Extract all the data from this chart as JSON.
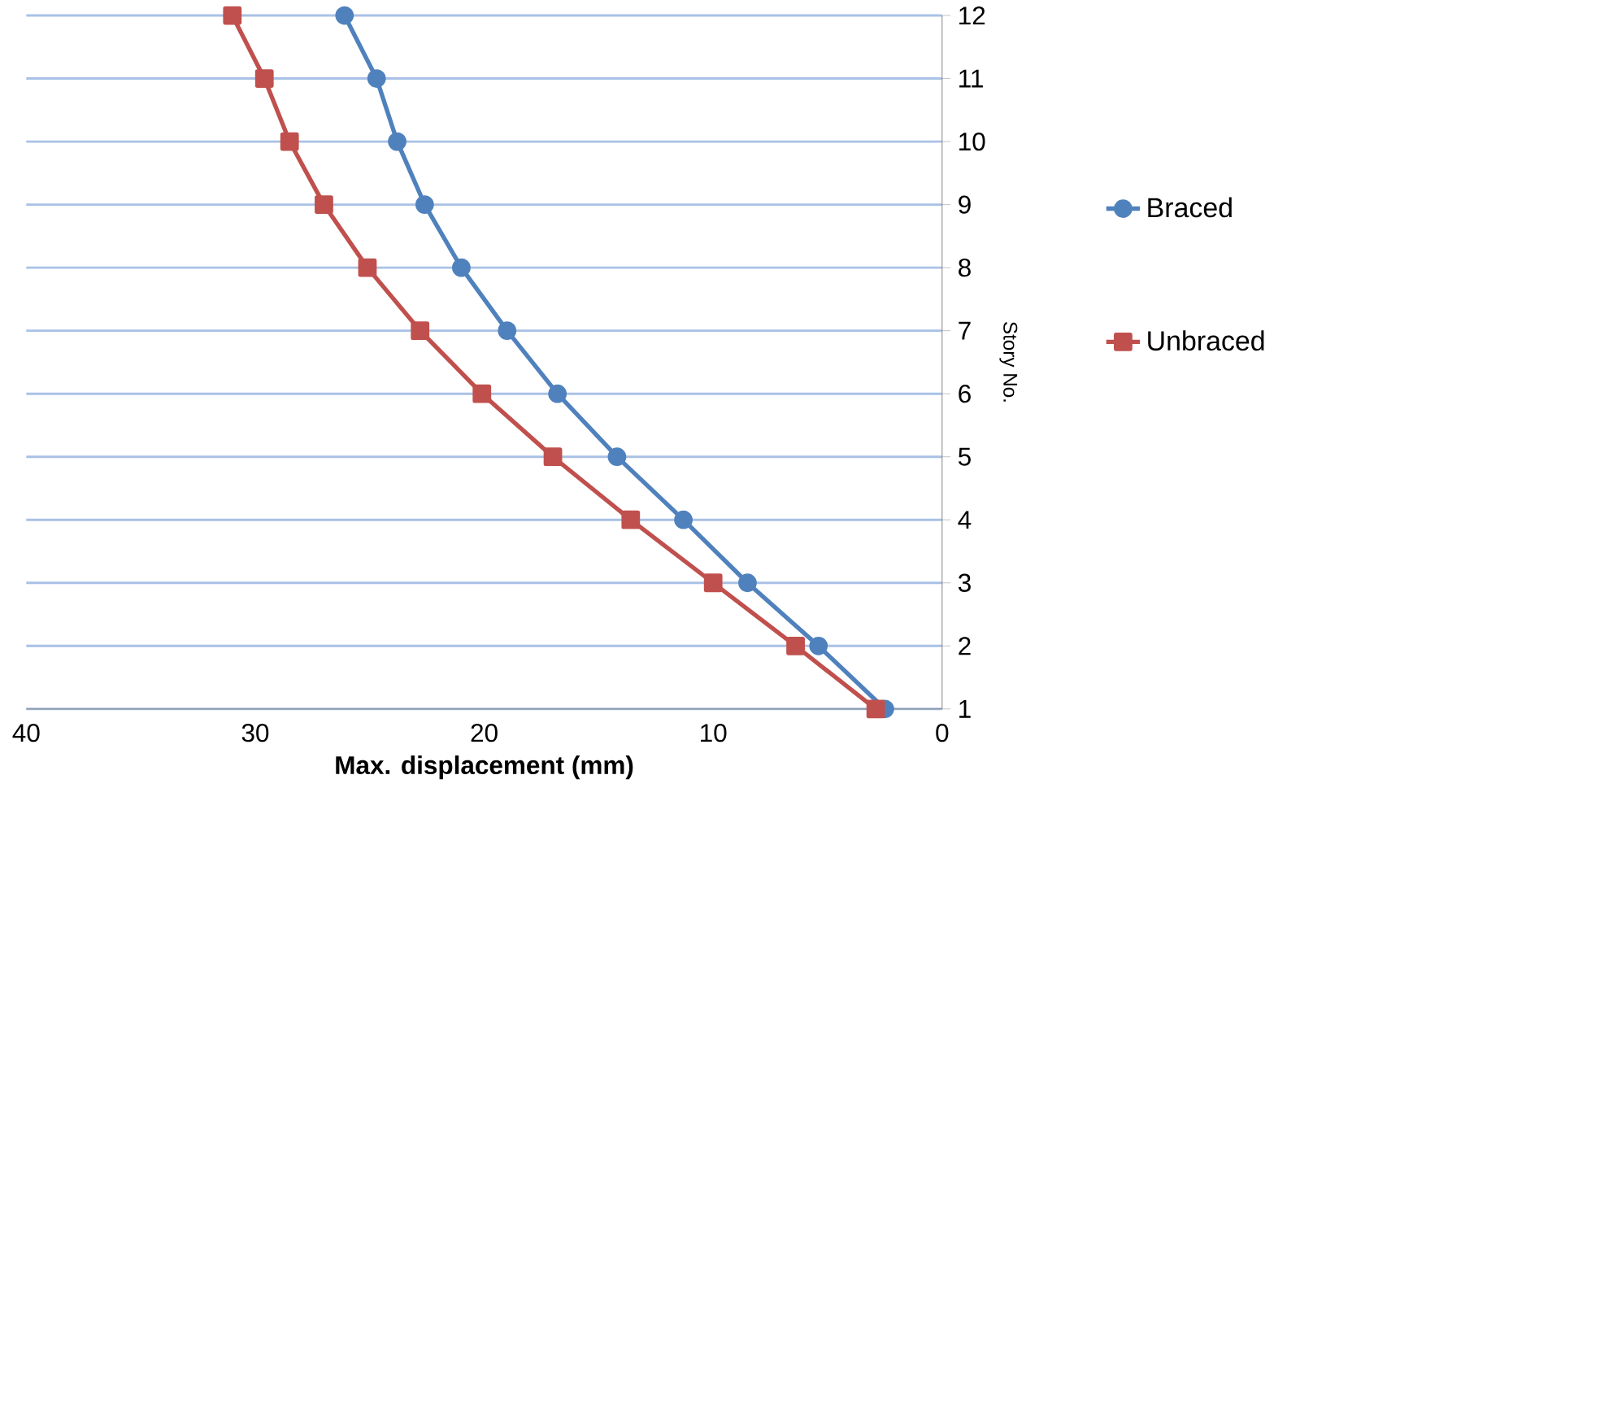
{
  "chart_data": {
    "type": "line",
    "xlabel": "Max. displacement (mm)",
    "ylabel": "Story No.",
    "xlim": [
      40,
      0
    ],
    "xticks": [
      40,
      30,
      20,
      10,
      0
    ],
    "ylim": [
      1,
      12
    ],
    "yticks": [
      1,
      2,
      3,
      4,
      5,
      6,
      7,
      8,
      9,
      10,
      11,
      12
    ],
    "grid": "y",
    "legend": "right",
    "series": [
      {
        "name": "Braced",
        "color": "#4f81bd",
        "marker": "circle",
        "x": [
          2.5,
          5.4,
          8.5,
          11.3,
          14.2,
          16.8,
          19.0,
          21.0,
          22.6,
          23.8,
          24.7,
          26.1
        ],
        "values": [
          1,
          2,
          3,
          4,
          5,
          6,
          7,
          8,
          9,
          10,
          11,
          12
        ]
      },
      {
        "name": "Unbraced",
        "color": "#c0504d",
        "marker": "square",
        "x": [
          2.9,
          6.4,
          10.0,
          13.6,
          17.0,
          20.1,
          22.8,
          25.1,
          27.0,
          28.5,
          29.6,
          31.0
        ],
        "values": [
          1,
          2,
          3,
          4,
          5,
          6,
          7,
          8,
          9,
          10,
          11,
          12
        ]
      }
    ]
  }
}
